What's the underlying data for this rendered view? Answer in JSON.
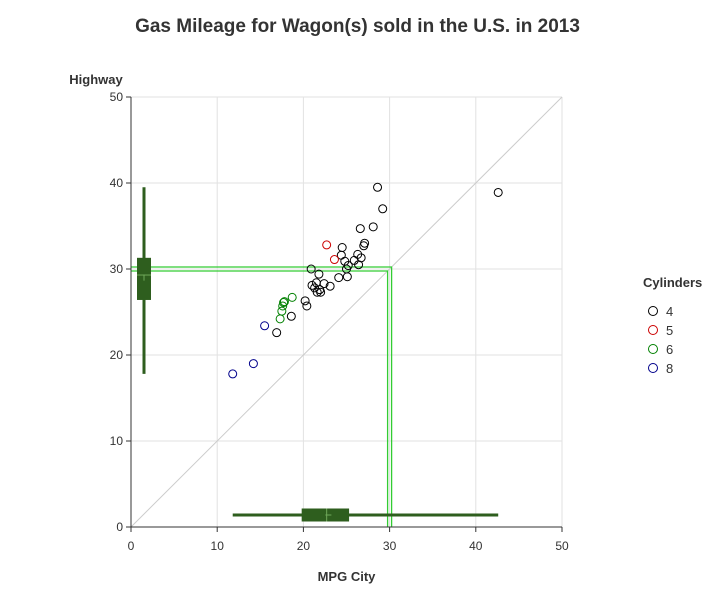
{
  "chart_data": {
    "type": "scatter",
    "title": "Gas Mileage for Wagon(s) sold in the U.S. in 2013",
    "xlabel": "MPG City",
    "ylabel": "Highway",
    "xlim": [
      0,
      50
    ],
    "ylim": [
      0,
      50
    ],
    "x_ticks": [
      "0",
      "10",
      "20",
      "30",
      "40",
      "50"
    ],
    "y_ticks": [
      "0",
      "10",
      "20",
      "30",
      "40",
      "50"
    ],
    "grid": true,
    "reference_line": {
      "type": "y=x"
    },
    "mean_lines": {
      "x": 30,
      "y": 30,
      "color": "#33cc33"
    },
    "boxplot_x": {
      "min": 11.8,
      "q1": 19.8,
      "median": 22.7,
      "mean": 22.9,
      "q3": 25.3,
      "max": 42.6,
      "color": "#2e5e1e"
    },
    "boxplot_y": {
      "min": 17.8,
      "q1": 26.4,
      "median": 29.3,
      "mean": 29.0,
      "q3": 31.3,
      "max": 39.5,
      "color": "#2e5e1e"
    },
    "legend": {
      "title": "Cylinders",
      "position": "right"
    },
    "series": [
      {
        "name": "4",
        "color": "#000000",
        "points": [
          [
            16.9,
            22.6
          ],
          [
            18.6,
            24.5
          ],
          [
            20.2,
            26.3
          ],
          [
            20.4,
            25.7
          ],
          [
            20.9,
            30.0
          ],
          [
            21.0,
            28.1
          ],
          [
            21.3,
            27.8
          ],
          [
            21.5,
            28.4
          ],
          [
            21.6,
            27.3
          ],
          [
            21.8,
            29.4
          ],
          [
            21.9,
            27.6
          ],
          [
            22.0,
            27.3
          ],
          [
            22.4,
            28.3
          ],
          [
            23.1,
            28.0
          ],
          [
            24.1,
            29.0
          ],
          [
            24.4,
            31.6
          ],
          [
            24.5,
            32.5
          ],
          [
            24.8,
            30.9
          ],
          [
            25.0,
            30.0
          ],
          [
            25.1,
            29.1
          ],
          [
            25.2,
            30.4
          ],
          [
            25.9,
            31.0
          ],
          [
            26.3,
            31.7
          ],
          [
            26.4,
            30.5
          ],
          [
            26.6,
            34.7
          ],
          [
            26.7,
            31.3
          ],
          [
            27.0,
            32.7
          ],
          [
            27.1,
            33.0
          ],
          [
            28.1,
            34.9
          ],
          [
            28.6,
            39.5
          ],
          [
            29.2,
            37.0
          ],
          [
            42.6,
            38.9
          ]
        ]
      },
      {
        "name": "5",
        "color": "#cc0000",
        "points": [
          [
            22.7,
            32.8
          ],
          [
            23.6,
            31.1
          ]
        ]
      },
      {
        "name": "6",
        "color": "#008000",
        "points": [
          [
            17.3,
            24.2
          ],
          [
            17.5,
            25.1
          ],
          [
            17.6,
            25.7
          ],
          [
            17.7,
            26.1
          ],
          [
            17.8,
            26.2
          ],
          [
            18.7,
            26.7
          ]
        ]
      },
      {
        "name": "8",
        "color": "#00008b",
        "points": [
          [
            11.8,
            17.8
          ],
          [
            14.2,
            19.0
          ],
          [
            15.5,
            23.4
          ]
        ]
      }
    ]
  }
}
